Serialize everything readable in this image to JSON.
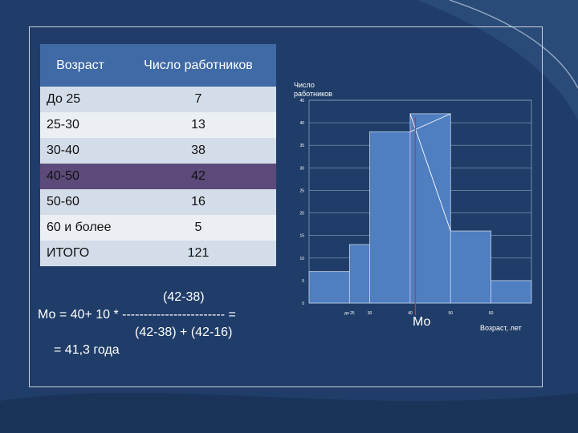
{
  "table": {
    "headers": [
      "Возраст",
      "Число работников"
    ],
    "rows": [
      {
        "age": "До 25",
        "count": "7"
      },
      {
        "age": "25-30",
        "count": "13"
      },
      {
        "age": "30-40",
        "count": "38"
      },
      {
        "age": "40-50",
        "count": "42"
      },
      {
        "age": "50-60",
        "count": "16"
      },
      {
        "age": "60 и более",
        "count": "5"
      },
      {
        "age": "ИТОГО",
        "count": "121"
      }
    ]
  },
  "formula": {
    "numerator": "(42-38)",
    "main": "Мо = 40+ 10 * ------------------------ =",
    "denominator": "(42-38) + (42-16)",
    "result": "= 41,3 года"
  },
  "chart_data": {
    "type": "bar",
    "title": "",
    "ylabel": "Число работников",
    "xlabel": "Возраст, лет",
    "mode_label": "Мо",
    "bins": [
      {
        "from": 15,
        "to": 25,
        "value": 7
      },
      {
        "from": 25,
        "to": 30,
        "value": 13
      },
      {
        "from": 30,
        "to": 40,
        "value": 38
      },
      {
        "from": 40,
        "to": 50,
        "value": 42
      },
      {
        "from": 50,
        "to": 60,
        "value": 16
      },
      {
        "from": 60,
        "to": 70,
        "value": 5
      }
    ],
    "x_ticks": [
      "до 25",
      "30",
      "40",
      "50",
      "60"
    ],
    "y_ticks": [
      0,
      5,
      10,
      15,
      20,
      25,
      30,
      35,
      40,
      45
    ],
    "xlim": [
      15,
      70
    ],
    "ylim": [
      0,
      45
    ],
    "mode_value": 41.3,
    "colors": {
      "bar": "#4f7ec1",
      "bar_edge": "#c5d3e6",
      "mode_line": "#c03a3a",
      "construction": "#ffffff"
    }
  }
}
